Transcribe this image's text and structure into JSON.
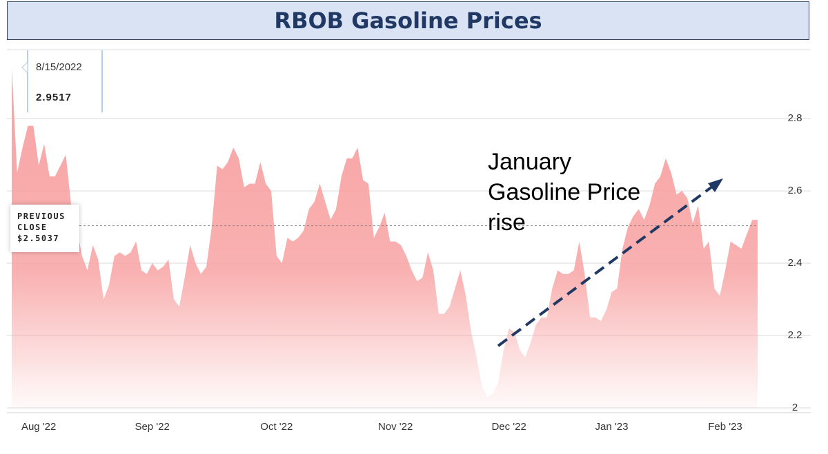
{
  "chart_data": {
    "type": "area",
    "title": "RBOB Gasoline Prices",
    "categories": [
      null,
      null,
      null,
      null,
      null,
      "Aug '22",
      null,
      null,
      null,
      null,
      null,
      null,
      null,
      null,
      null,
      null,
      null,
      null,
      null,
      null,
      null,
      null,
      null,
      null,
      null,
      null,
      "Sep '22",
      null,
      null,
      null,
      null,
      null,
      null,
      null,
      null,
      null,
      null,
      null,
      null,
      null,
      null,
      null,
      null,
      null,
      null,
      null,
      null,
      null,
      null,
      "Oct '22",
      null,
      null,
      null,
      null,
      null,
      null,
      null,
      null,
      null,
      null,
      null,
      null,
      null,
      null,
      null,
      null,
      null,
      null,
      null,
      null,
      null,
      "Nov '22",
      null,
      null,
      null,
      null,
      null,
      null,
      null,
      null,
      null,
      null,
      null,
      null,
      null,
      null,
      null,
      null,
      null,
      null,
      null,
      null,
      "Dec '22",
      null,
      null,
      null,
      null,
      null,
      null,
      null,
      null,
      null,
      null,
      null,
      null,
      null,
      null,
      null,
      null,
      null,
      null,
      "Jan '23",
      null,
      null,
      null,
      null,
      null,
      null,
      null,
      null,
      null,
      null,
      null,
      null,
      null,
      null,
      null,
      null,
      null,
      null,
      null,
      null,
      "Feb '23",
      null,
      null,
      null,
      null,
      null,
      null
    ],
    "values": [
      2.94,
      2.65,
      2.72,
      2.78,
      2.78,
      2.67,
      2.73,
      2.64,
      2.64,
      2.67,
      2.7,
      2.56,
      2.5,
      2.42,
      2.38,
      2.45,
      2.41,
      2.3,
      2.34,
      2.42,
      2.43,
      2.42,
      2.43,
      2.46,
      2.38,
      2.37,
      2.4,
      2.38,
      2.39,
      2.41,
      2.3,
      2.28,
      2.36,
      2.45,
      2.4,
      2.37,
      2.39,
      2.5,
      2.67,
      2.66,
      2.68,
      2.72,
      2.69,
      2.61,
      2.62,
      2.62,
      2.68,
      2.62,
      2.6,
      2.42,
      2.4,
      2.47,
      2.46,
      2.47,
      2.49,
      2.55,
      2.57,
      2.62,
      2.57,
      2.52,
      2.55,
      2.64,
      2.69,
      2.69,
      2.72,
      2.63,
      2.62,
      2.47,
      2.5,
      2.54,
      2.46,
      2.46,
      2.45,
      2.42,
      2.38,
      2.35,
      2.36,
      2.43,
      2.38,
      2.26,
      2.26,
      2.28,
      2.33,
      2.38,
      2.31,
      2.21,
      2.14,
      2.06,
      2.03,
      2.04,
      2.07,
      2.16,
      2.22,
      2.21,
      2.16,
      2.14,
      2.18,
      2.23,
      2.25,
      2.25,
      2.33,
      2.38,
      2.37,
      2.37,
      2.38,
      2.46,
      2.37,
      2.25,
      2.25,
      2.24,
      2.27,
      2.32,
      2.33,
      2.44,
      2.5,
      2.53,
      2.55,
      2.52,
      2.56,
      2.62,
      2.64,
      2.69,
      2.65,
      2.59,
      2.6,
      2.58,
      2.51,
      2.56,
      2.44,
      2.46,
      2.33,
      2.31,
      2.38,
      2.46,
      2.45,
      2.44,
      2.48,
      2.52,
      2.52
    ],
    "color": "#f8a3a3",
    "ylim": [
      2,
      2.985
    ],
    "yticks": [
      2,
      2.2,
      2.4,
      2.6,
      2.8
    ],
    "grid": true,
    "tooltip": {
      "date": "8/15/2022",
      "value": 2.9517
    },
    "previous_close": {
      "label": "PREVIOUS CLOSE",
      "value": 2.5037,
      "value_label": "$2.5037"
    },
    "annotation": "January Gasoline Price rise"
  }
}
